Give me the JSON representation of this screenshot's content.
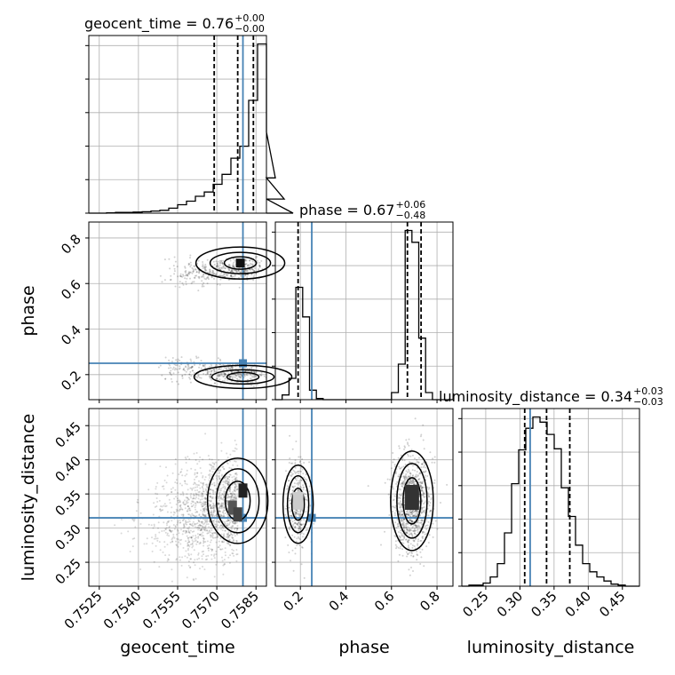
{
  "chart_data": {
    "type": "corner",
    "parameters": [
      "geocent_time",
      "phase",
      "luminosity_distance"
    ],
    "truths": {
      "geocent_time": 0.758,
      "phase": 0.25,
      "luminosity_distance": 0.315
    },
    "ranges": {
      "geocent_time": [
        0.7521,
        0.7589
      ],
      "phase": [
        0.09,
        0.87
      ],
      "luminosity_distance": [
        0.215,
        0.475
      ]
    },
    "ticks": {
      "geocent_time": [
        "0.7525",
        "0.7540",
        "0.7555",
        "0.7570",
        "0.7585"
      ],
      "geocent_time_values": [
        0.7525,
        0.754,
        0.7555,
        0.757,
        0.7585
      ],
      "phase": [
        "0.2",
        "0.4",
        "0.6",
        "0.8"
      ],
      "phase_values": [
        0.2,
        0.4,
        0.6,
        0.8
      ],
      "luminosity_distance": [
        "0.25",
        "0.30",
        "0.35",
        "0.40",
        "0.45"
      ],
      "luminosity_distance_values": [
        0.25,
        0.3,
        0.35,
        0.4,
        0.45
      ]
    },
    "titles": [
      {
        "param": "geocent_time",
        "text": "geocent_time = 0.76",
        "plus": "+0.00",
        "minus": "−0.00"
      },
      {
        "param": "phase",
        "text": "phase = 0.67",
        "plus": "+0.06",
        "minus": "−0.48"
      },
      {
        "param": "luminosity_distance",
        "text": "luminosity_distance = 0.34",
        "plus": "+0.03",
        "minus": "−0.03"
      }
    ],
    "quantile_lines": {
      "geocent_time": [
        0.7569,
        0.7578,
        0.7584
      ],
      "phase": [
        0.19,
        0.67,
        0.73
      ],
      "luminosity_distance": [
        0.307,
        0.339,
        0.373
      ]
    },
    "histograms": {
      "geocent_time": {
        "edges_start": 0.7521,
        "bin_width": 0.00034,
        "counts": [
          0,
          0,
          0.5,
          1,
          1,
          1.5,
          2,
          3,
          4,
          7,
          12,
          17,
          24,
          30,
          41,
          55,
          78,
          95,
          160,
          240,
          115,
          50,
          20,
          0
        ]
      },
      "phase": {
        "edges_start": 0.09,
        "bin_width": 0.03,
        "counts": [
          0,
          4,
          18,
          95,
          70,
          8,
          1,
          0,
          0,
          0,
          0,
          0,
          0,
          0,
          0,
          0,
          0,
          6,
          30,
          143,
          133,
          52,
          6,
          0,
          0,
          0
        ]
      },
      "luminosity_distance": {
        "edges_start": 0.215,
        "bin_width": 0.0104,
        "counts": [
          0,
          1,
          1,
          3,
          9,
          22,
          52,
          100,
          133,
          154,
          165,
          160,
          148,
          134,
          96,
          68,
          40,
          22,
          14,
          9,
          5,
          2,
          1,
          0,
          0
        ]
      }
    },
    "grid": true,
    "truth_color": "#4682b4"
  },
  "axis_labels": {
    "geocent_time": "geocent_time",
    "phase": "phase",
    "luminosity_distance": "luminosity_distance"
  }
}
